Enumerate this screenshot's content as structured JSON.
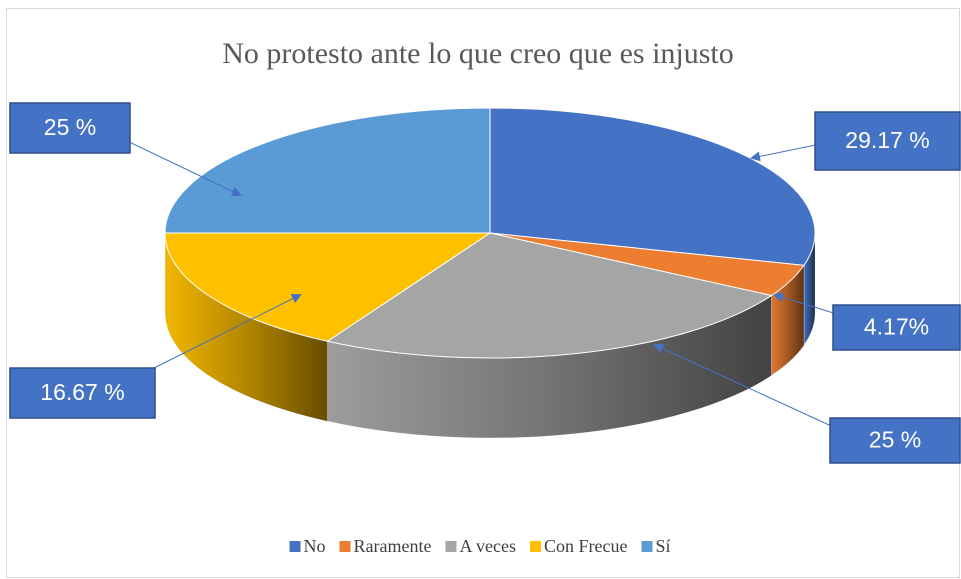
{
  "chart_data": {
    "type": "pie3d",
    "title": "No protesto ante lo que creo que es injusto",
    "categories": [
      "No",
      "Raramente",
      "A veces",
      "Con Frecue",
      "Sí"
    ],
    "values": [
      29.17,
      4.17,
      25,
      16.67,
      25
    ],
    "value_labels": [
      "29.17 %",
      "4.17%",
      "25 %",
      "16.67 %",
      "25 %"
    ],
    "colors": [
      "#4472c4",
      "#ed7d31",
      "#a5a5a5",
      "#ffc000",
      "#5b9bd5"
    ],
    "legend": "bottom"
  }
}
